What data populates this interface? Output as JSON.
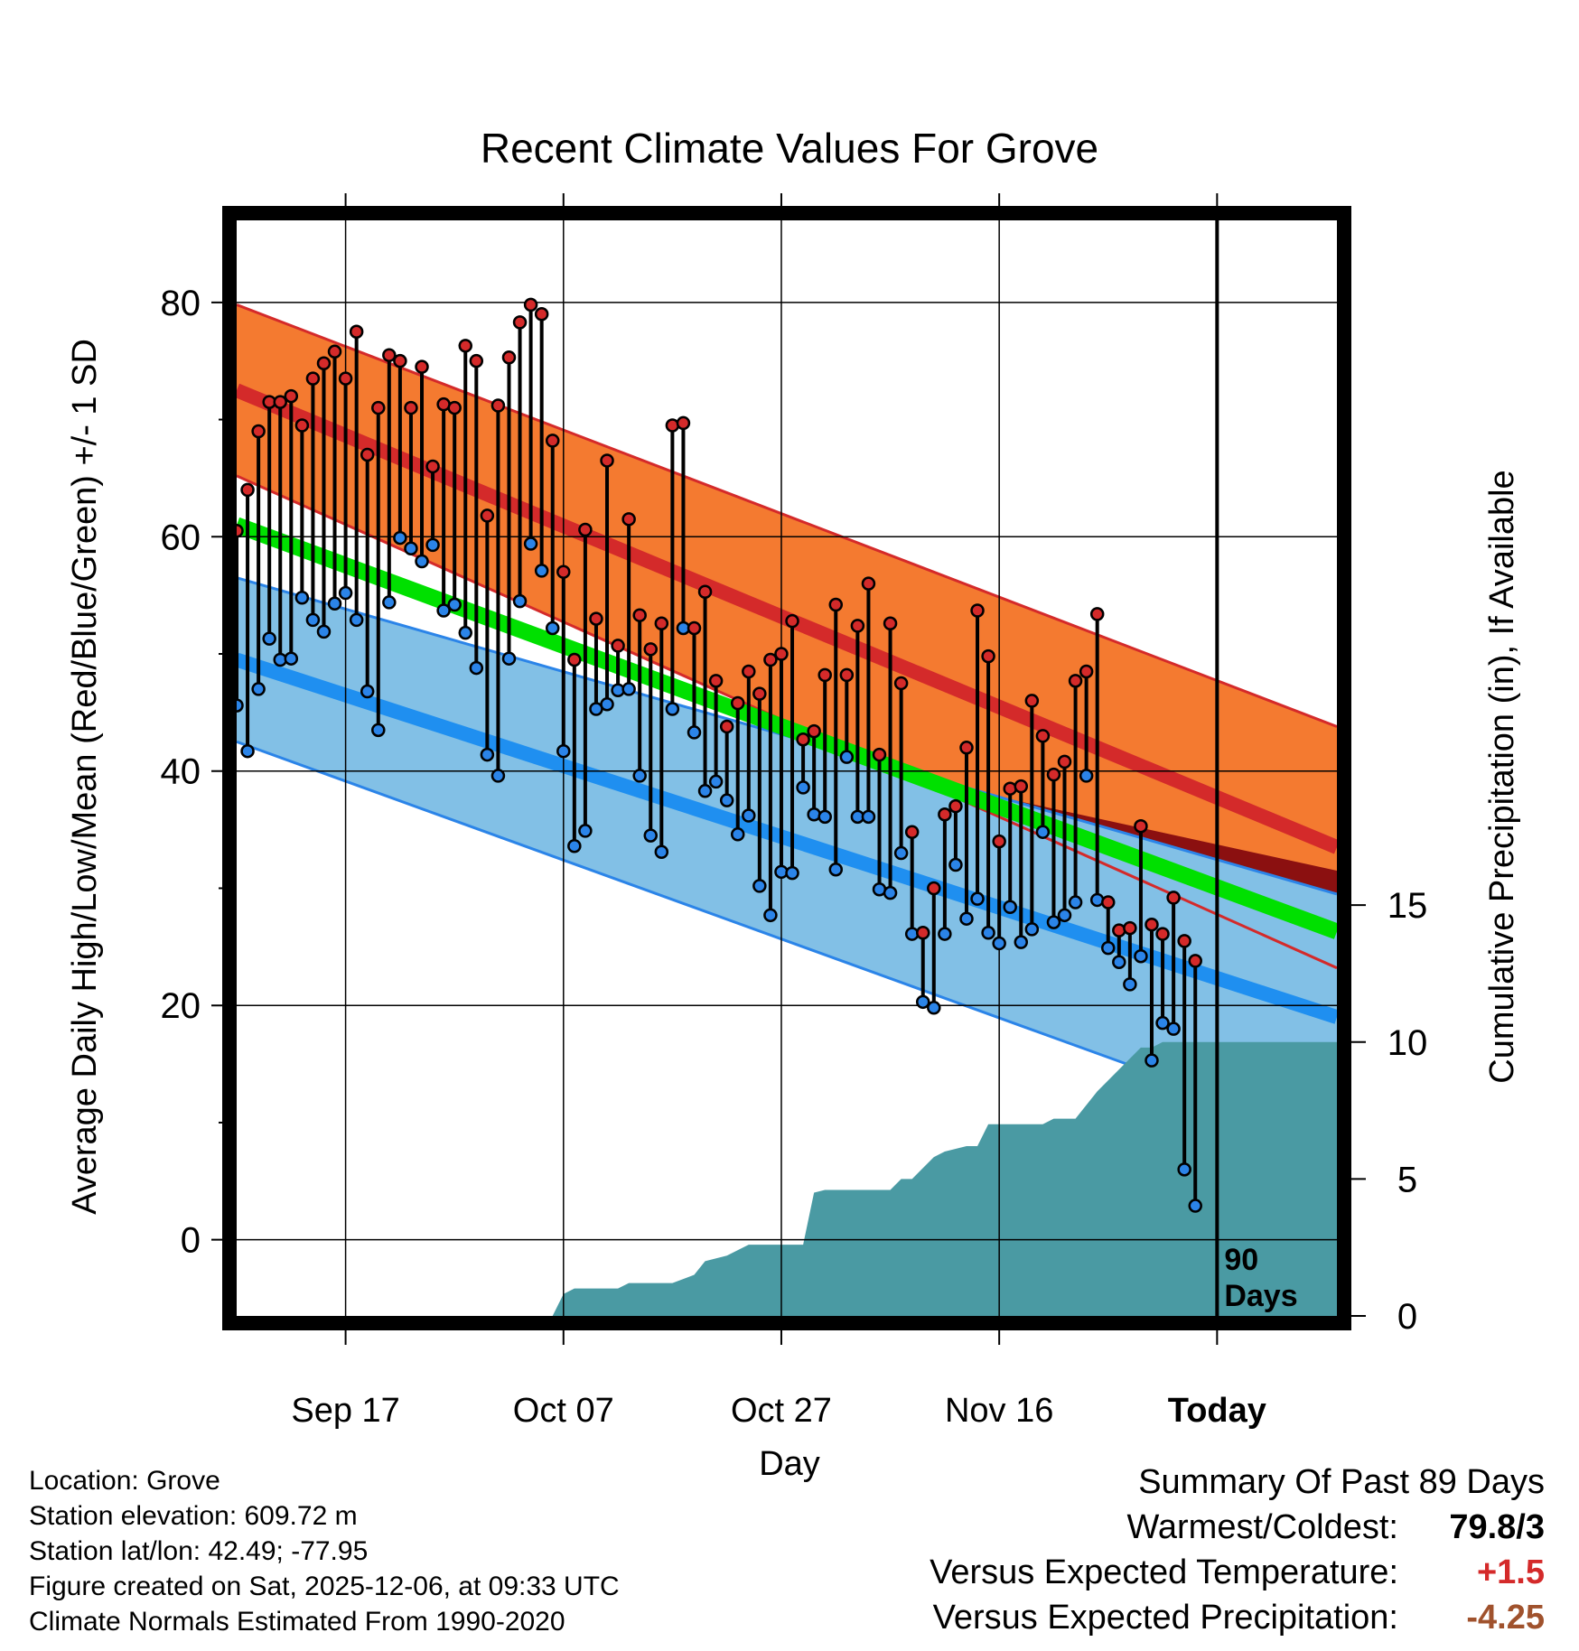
{
  "chart_data": {
    "type": "line",
    "title": "Recent Climate Values For Grove",
    "xlabel": "Day",
    "ylabel": "Average Daily High/Low/Mean (Red/Blue/Green) +/- 1 SD",
    "y2label": "Cumulative Precipitation (in), If Available",
    "ylim": [
      -6.5,
      87
    ],
    "y2lim": [
      0,
      40
    ],
    "xlim": [
      0,
      101
    ],
    "y_ticks": [
      0,
      20,
      40,
      60,
      80
    ],
    "y_tick_labels": [
      "0",
      "20",
      "40",
      "60",
      "80"
    ],
    "y2_ticks": [
      0,
      5,
      10,
      15
    ],
    "y2_tick_labels": [
      "0",
      "5",
      "10",
      "15"
    ],
    "x_ticks": [
      10,
      30,
      50,
      70,
      90
    ],
    "x_tick_labels": [
      "Sep 17",
      "Oct 07",
      "Oct 27",
      "Nov 16",
      "Today"
    ],
    "today_x": 90,
    "today_label_line1": "90",
    "today_label_line2": "Days",
    "grid": true,
    "colors": {
      "high_band": "#f47a30",
      "high_line": "#d42a2a",
      "high_dark": "#8b1010",
      "low_band": "#82c0e6",
      "low_line": "#1f8ff0",
      "low_edge": "#2b84e8",
      "mean_line": "#00e000",
      "precip": "#4a9aa3",
      "high_dot": "#d42a2a",
      "low_dot": "#2b84e8"
    },
    "normal_high": {
      "x": [
        0,
        101
      ],
      "mean": [
        72.5,
        33.5
      ],
      "upper": [
        79.8,
        43.8
      ],
      "lower": [
        65.2,
        23.2
      ]
    },
    "normal_low": {
      "x": [
        0,
        101
      ],
      "mean": [
        49.5,
        19.0
      ],
      "upper": [
        56.5,
        29.5
      ],
      "lower": [
        42.5,
        8.5
      ]
    },
    "normal_mean": {
      "x": [
        0,
        101
      ],
      "values": [
        61.0,
        26.3
      ]
    },
    "daily_high": [
      60.5,
      64.0,
      69.0,
      71.5,
      71.5,
      72.0,
      69.5,
      73.5,
      74.8,
      75.8,
      73.5,
      77.5,
      67.0,
      71.0,
      75.5,
      75.0,
      71.0,
      74.5,
      66.0,
      71.3,
      71.0,
      76.3,
      75.0,
      61.8,
      71.2,
      75.3,
      78.3,
      79.8,
      79.0,
      68.2,
      57.0,
      49.5,
      60.6,
      53.0,
      66.5,
      50.7,
      61.5,
      53.3,
      50.4,
      52.6,
      69.5,
      69.7,
      52.2,
      55.3,
      47.7,
      43.8,
      45.8,
      48.5,
      46.6,
      49.5,
      50.0,
      52.8,
      42.7,
      43.4,
      48.2,
      54.2,
      48.2,
      52.4,
      56.0,
      41.4,
      52.6,
      47.5,
      34.8,
      26.2,
      30.0,
      36.3,
      37.0,
      42.0,
      53.7,
      49.8,
      34.0,
      38.5,
      38.7,
      46.0,
      43.0,
      39.7,
      40.8,
      47.7,
      48.5,
      53.4,
      28.8,
      26.4,
      26.6,
      35.3,
      26.9,
      26.1,
      29.2,
      25.5,
      23.8
    ],
    "daily_low": [
      45.6,
      41.7,
      47.0,
      51.3,
      49.5,
      49.6,
      54.8,
      52.9,
      51.9,
      54.3,
      55.2,
      52.9,
      46.8,
      43.5,
      54.4,
      59.9,
      59.0,
      57.9,
      59.3,
      53.7,
      54.2,
      51.8,
      48.8,
      41.4,
      39.6,
      49.6,
      54.5,
      59.4,
      57.1,
      52.2,
      41.7,
      33.6,
      34.9,
      45.3,
      45.7,
      46.9,
      47.0,
      39.6,
      34.5,
      33.1,
      45.3,
      52.2,
      43.3,
      38.3,
      39.1,
      37.5,
      34.6,
      36.2,
      30.2,
      27.7,
      31.4,
      31.3,
      38.6,
      36.3,
      36.1,
      31.6,
      41.2,
      36.1,
      36.1,
      29.9,
      29.6,
      33.0,
      26.1,
      20.3,
      19.8,
      26.1,
      32.0,
      27.4,
      29.1,
      26.2,
      25.3,
      28.4,
      25.4,
      26.5,
      34.8,
      27.1,
      27.7,
      28.8,
      39.6,
      29.0,
      24.9,
      23.7,
      21.8,
      24.2,
      15.3,
      18.5,
      18.0,
      6.0,
      2.9
    ],
    "precip": {
      "x": [
        0,
        29,
        30,
        31,
        35,
        36,
        38,
        40,
        42,
        43,
        45,
        47,
        49,
        50,
        51,
        52,
        53,
        54,
        55,
        60,
        61,
        62,
        64,
        65,
        67,
        68,
        69,
        70,
        74,
        75,
        76,
        77,
        79,
        81,
        83,
        84,
        85,
        86,
        88,
        89,
        90,
        101
      ],
      "values": [
        0,
        0,
        0.8,
        1.0,
        1.0,
        1.2,
        1.2,
        1.2,
        1.5,
        2.0,
        2.2,
        2.6,
        2.6,
        2.6,
        2.6,
        2.6,
        4.5,
        4.6,
        4.6,
        4.6,
        5.0,
        5.0,
        5.8,
        6.0,
        6.2,
        6.2,
        7.0,
        7.0,
        7.0,
        7.2,
        7.2,
        7.2,
        8.2,
        9.0,
        9.8,
        9.8,
        10.0,
        10.0,
        10.0,
        10.0,
        10.0,
        10.0
      ]
    }
  },
  "footer": {
    "location": "Location: Grove",
    "elevation": "Station elevation: 609.72 m",
    "latlon": "Station lat/lon: 42.49; -77.95",
    "created": "Figure created on Sat, 2025-12-06, at 09:33 UTC",
    "normals": "Climate Normals Estimated From 1990-2020"
  },
  "summary": {
    "title": "Summary Of Past 89 Days",
    "warmest_label": "Warmest/Coldest:",
    "warmest_value": "79.8/3",
    "temp_label": "Versus Expected Temperature:",
    "temp_value": "+1.5",
    "temp_color": "#d42a2a",
    "precip_label": "Versus Expected Precipitation:",
    "precip_value": "-4.25",
    "precip_color": "#a0522d"
  }
}
